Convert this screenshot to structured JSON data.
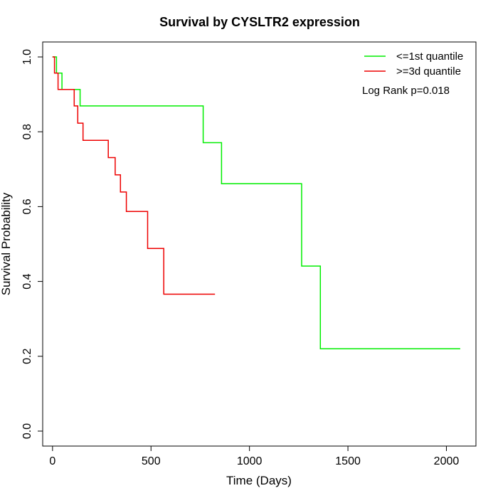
{
  "chart_data": {
    "type": "line",
    "title": "Survival by CYSLTR2 expression",
    "xlabel": "Time (Days)",
    "ylabel": "Survival Probability",
    "xlim": [
      -50,
      2150
    ],
    "ylim": [
      -0.04,
      1.04
    ],
    "x_ticks": [
      0,
      500,
      1000,
      1500,
      2000
    ],
    "y_ticks": [
      0.0,
      0.2,
      0.4,
      0.6,
      0.8,
      1.0
    ],
    "x_tick_labels": [
      "0",
      "500",
      "1000",
      "1500",
      "2000"
    ],
    "y_tick_labels": [
      "0.0",
      "0.2",
      "0.4",
      "0.6",
      "0.8",
      "1.0"
    ],
    "grid": false,
    "legend_position": "top-right",
    "annotation": "Log Rank p=0.018",
    "series": [
      {
        "name": "<=1st quantile",
        "color": "#00ee00",
        "step_points": [
          [
            20,
            1.0
          ],
          [
            20,
            0.957
          ],
          [
            48,
            0.957
          ],
          [
            48,
            0.913
          ],
          [
            140,
            0.913
          ],
          [
            140,
            0.869
          ],
          [
            765,
            0.869
          ],
          [
            765,
            0.771
          ],
          [
            858,
            0.771
          ],
          [
            858,
            0.661
          ],
          [
            1265,
            0.661
          ],
          [
            1265,
            0.441
          ],
          [
            1360,
            0.441
          ],
          [
            1360,
            0.22
          ],
          [
            2070,
            0.22
          ]
        ],
        "start": [
          0,
          1.0
        ]
      },
      {
        "name": ">=3d quantile",
        "color": "#ee0000",
        "step_points": [
          [
            10,
            1.0
          ],
          [
            10,
            0.957
          ],
          [
            28,
            0.957
          ],
          [
            28,
            0.913
          ],
          [
            110,
            0.913
          ],
          [
            110,
            0.869
          ],
          [
            128,
            0.869
          ],
          [
            128,
            0.823
          ],
          [
            155,
            0.823
          ],
          [
            155,
            0.777
          ],
          [
            283,
            0.777
          ],
          [
            283,
            0.731
          ],
          [
            318,
            0.731
          ],
          [
            318,
            0.685
          ],
          [
            345,
            0.685
          ],
          [
            345,
            0.639
          ],
          [
            375,
            0.639
          ],
          [
            375,
            0.587
          ],
          [
            483,
            0.587
          ],
          [
            483,
            0.488
          ],
          [
            565,
            0.488
          ],
          [
            565,
            0.366
          ],
          [
            825,
            0.366
          ]
        ],
        "start": [
          0,
          1.0
        ]
      }
    ]
  }
}
